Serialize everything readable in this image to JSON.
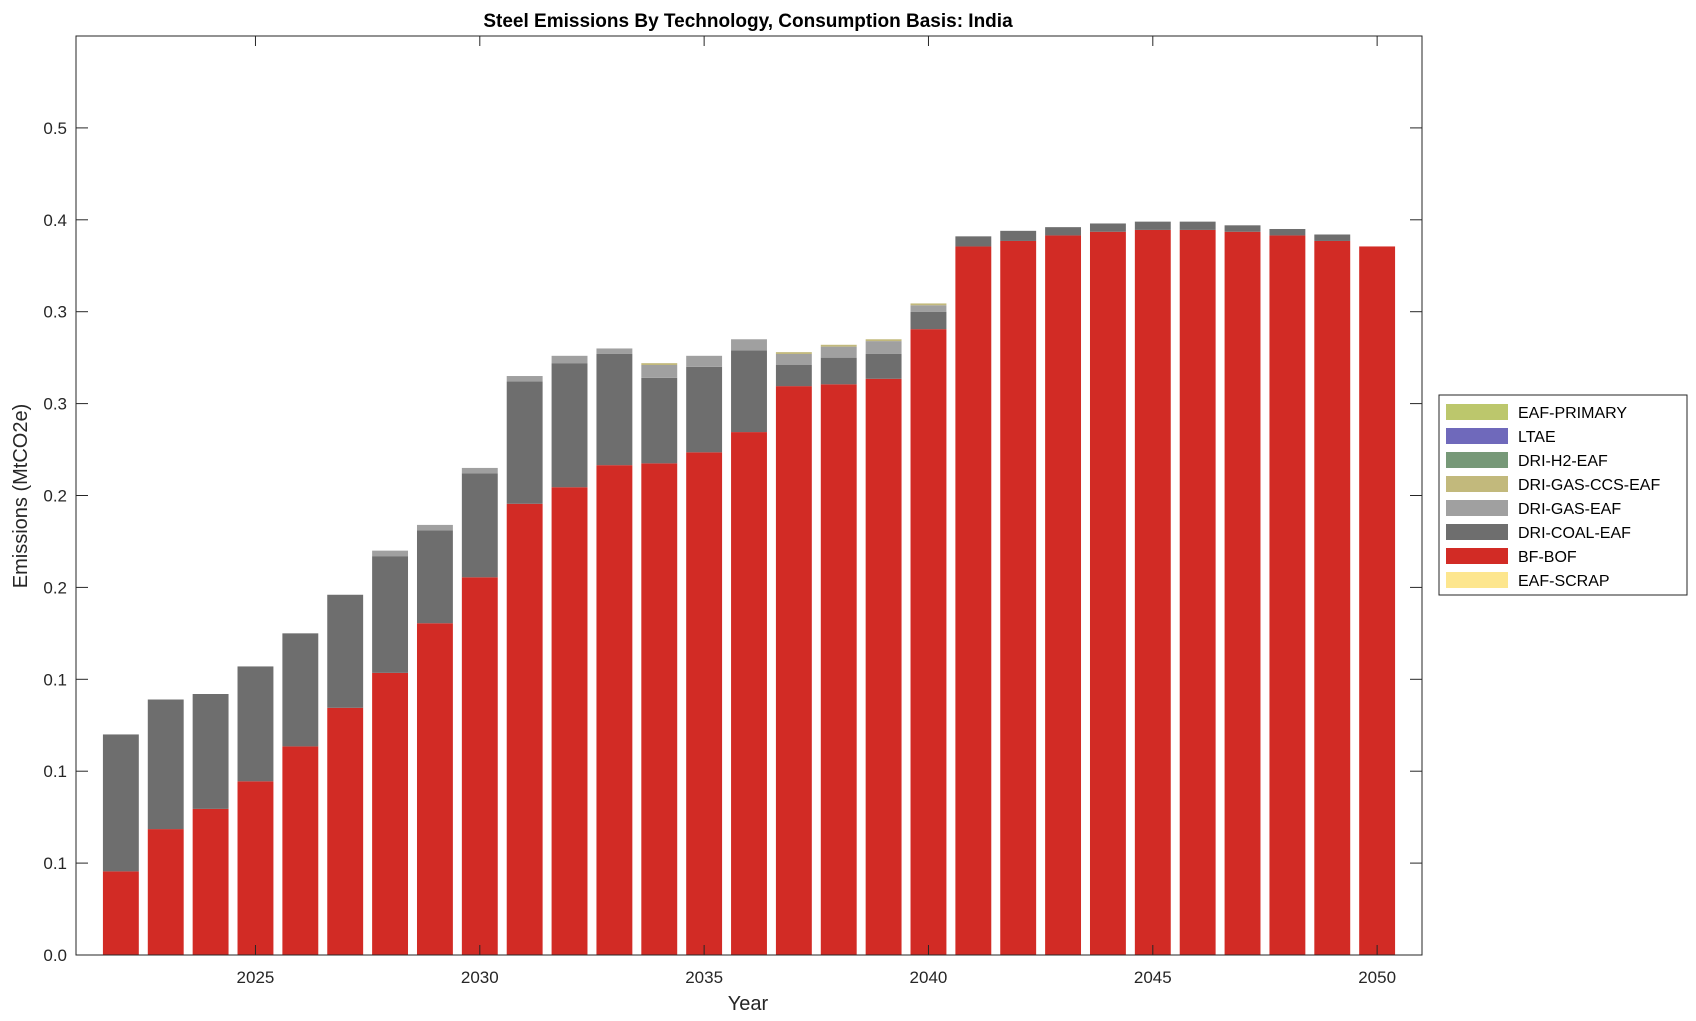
{
  "chart_data": {
    "type": "bar",
    "stacked": true,
    "title": "Steel Emissions By Technology, Consumption Basis: India",
    "xlabel": "Year",
    "ylabel": "Emissions (MtCO2e)",
    "xlim": [
      2021,
      2051
    ],
    "ylim": [
      0,
      0.5
    ],
    "x_ticks": [
      2025,
      2030,
      2035,
      2040,
      2045,
      2050
    ],
    "y_tick_values": [
      0,
      0.05,
      0.1,
      0.15,
      0.2,
      0.25,
      0.3,
      0.35,
      0.4,
      0.45
    ],
    "y_tick_labels": [
      "0.0",
      "0.1",
      "0.1",
      "0.1",
      "0.2",
      "0.2",
      "0.3",
      "0.3",
      "0.4",
      "0.5"
    ],
    "legend_position": "right",
    "grid": false,
    "x": [
      2022,
      2023,
      2024,
      2025,
      2026,
      2027,
      2028,
      2029,
      2030,
      2031,
      2032,
      2033,
      2034,
      2035,
      2036,
      2037,
      2038,
      2039,
      2040,
      2041,
      2042,
      2043,
      2044,
      2045,
      2046,
      2047,
      2048,
      2049,
      2050
    ],
    "series": [
      {
        "name": "EAF-SCRAP",
        "color": "#fde68e",
        "values": [
          0,
          0,
          0,
          0,
          0,
          0,
          0,
          0,
          0,
          0,
          0,
          0,
          0,
          0,
          0,
          0,
          0,
          0,
          0,
          0,
          0,
          0,
          0,
          0,
          0,
          0,
          0,
          0,
          0
        ]
      },
      {
        "name": "BF-BOF",
        "color": "#d22b25",
        "values": [
          0.0455,
          0.0685,
          0.0795,
          0.0945,
          0.1135,
          0.1345,
          0.1535,
          0.1805,
          0.2055,
          0.2455,
          0.2545,
          0.2665,
          0.2675,
          0.2735,
          0.2845,
          0.3095,
          0.3105,
          0.3135,
          0.3405,
          0.3855,
          0.3885,
          0.3915,
          0.3935,
          0.3945,
          0.3945,
          0.3935,
          0.3915,
          0.3885,
          0.3855
        ]
      },
      {
        "name": "DRI-COAL-EAF",
        "color": "#6e6e6e",
        "values": [
          0.0745,
          0.0705,
          0.0625,
          0.0625,
          0.0615,
          0.0615,
          0.0635,
          0.0505,
          0.0565,
          0.0665,
          0.0675,
          0.0605,
          0.0465,
          0.0465,
          0.0445,
          0.0115,
          0.0145,
          0.0135,
          0.0095,
          0.0055,
          0.0055,
          0.0045,
          0.0045,
          0.0045,
          0.0045,
          0.0035,
          0.0035,
          0.0035,
          0.0
        ]
      },
      {
        "name": "DRI-GAS-EAF",
        "color": "#a0a0a0",
        "values": [
          0,
          0,
          0,
          0,
          0,
          0,
          0.003,
          0.003,
          0.003,
          0.003,
          0.004,
          0.003,
          0.007,
          0.006,
          0.006,
          0.006,
          0.006,
          0.007,
          0.0035,
          0,
          0,
          0,
          0,
          0,
          0,
          0,
          0,
          0,
          0
        ]
      },
      {
        "name": "DRI-GAS-CCS-EAF",
        "color": "#c2b97c",
        "values": [
          0,
          0,
          0,
          0,
          0,
          0,
          0,
          0,
          0,
          0,
          0,
          0,
          0.001,
          0,
          0,
          0.001,
          0.001,
          0.001,
          0.001,
          0,
          0,
          0,
          0,
          0,
          0,
          0,
          0,
          0,
          0
        ]
      },
      {
        "name": "DRI-H2-EAF",
        "color": "#779978",
        "values": [
          0,
          0,
          0,
          0,
          0,
          0,
          0,
          0,
          0,
          0,
          0,
          0,
          0,
          0,
          0,
          0,
          0,
          0,
          0,
          0,
          0,
          0,
          0,
          0,
          0,
          0,
          0,
          0,
          0
        ]
      },
      {
        "name": "LTAE",
        "color": "#6f69bb",
        "values": [
          0,
          0,
          0,
          0,
          0,
          0,
          0,
          0,
          0,
          0,
          0,
          0,
          0,
          0,
          0,
          0,
          0,
          0,
          0,
          0,
          0,
          0,
          0,
          0,
          0,
          0,
          0,
          0,
          0
        ]
      },
      {
        "name": "EAF-PRIMARY",
        "color": "#bcc76c",
        "values": [
          0,
          0,
          0,
          0,
          0,
          0,
          0,
          0,
          0,
          0,
          0,
          0,
          0,
          0,
          0,
          0,
          0,
          0,
          0,
          0,
          0,
          0,
          0,
          0,
          0,
          0,
          0,
          0,
          0
        ]
      }
    ],
    "legend_order": [
      "EAF-PRIMARY",
      "LTAE",
      "DRI-H2-EAF",
      "DRI-GAS-CCS-EAF",
      "DRI-GAS-EAF",
      "DRI-COAL-EAF",
      "BF-BOF",
      "EAF-SCRAP"
    ]
  }
}
